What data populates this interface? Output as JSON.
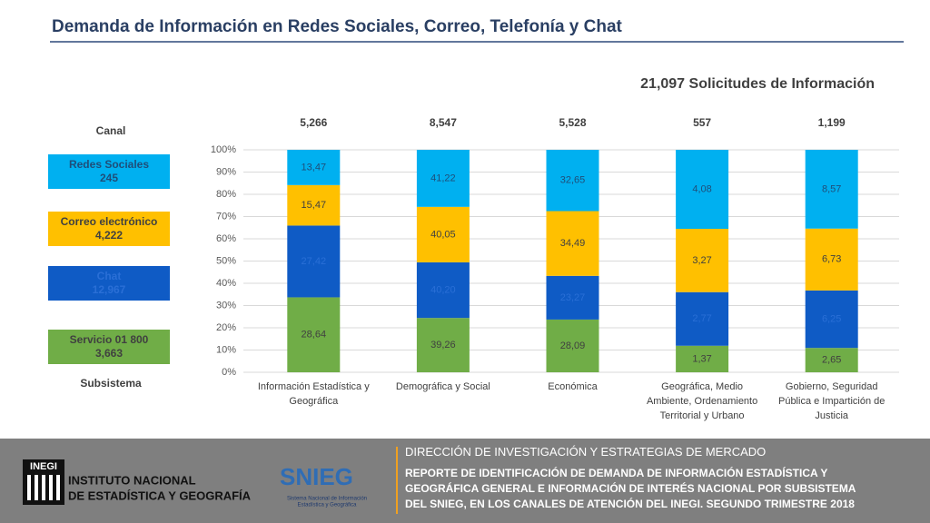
{
  "header": {
    "title": "Demanda de Información en Redes Sociales, Correo, Telefonía y Chat"
  },
  "chart_data": {
    "type": "stacked_bar_100",
    "subtitle": "21,097 Solicitudes de Información",
    "legend_title": "Canal",
    "legend_footer": "Subsistema",
    "categories": [
      "Información Estadística y Geográfica",
      "Demográfica y Social",
      "Económica",
      "Geográfica, Medio Ambiente, Ordenamiento Territorial y Urbano",
      "Gobierno, Seguridad Pública e Impartición de Justicia"
    ],
    "totals": [
      5266,
      8547,
      5528,
      557,
      1199
    ],
    "totals_labels": [
      "5,266",
      "8,547",
      "5,528",
      "557",
      "1,199"
    ],
    "series": [
      {
        "name": "Servicio 01 800",
        "color": "#70ad47",
        "label_color": "#404040",
        "count": 3663,
        "count_label": "3,663",
        "values": [
          28.64,
          39.26,
          28.09,
          1.37,
          2.65
        ],
        "value_labels": [
          "28,64",
          "39,26",
          "28,09",
          "1,37",
          "2,65"
        ]
      },
      {
        "name": "Chat",
        "color": "#0f5bc5",
        "label_color": "#2a6fd6",
        "count": 12967,
        "count_label": "12,967",
        "values": [
          27.42,
          40.2,
          23.27,
          2.77,
          6.25
        ],
        "value_labels": [
          "27,42",
          "40,20",
          "23,27",
          "2,77",
          "6,25"
        ]
      },
      {
        "name": "Correo electrónico",
        "color": "#ffc000",
        "label_color": "#404040",
        "count": 4222,
        "count_label": "4,222",
        "values": [
          15.47,
          40.05,
          34.49,
          3.27,
          6.73
        ],
        "value_labels": [
          "15,47",
          "40,05",
          "34,49",
          "3,27",
          "6,73"
        ]
      },
      {
        "name": "Redes Sociales",
        "color": "#00b0f0",
        "label_color": "#1f4e79",
        "count": 245,
        "values": [
          13.47,
          41.22,
          32.65,
          4.08,
          8.57
        ],
        "value_labels": [
          "13,47",
          "41,22",
          "32,65",
          "4,08",
          "8,57"
        ]
      }
    ],
    "ylim": [
      0,
      100
    ],
    "yticks": [
      {
        "value": 0,
        "label": "0%"
      },
      {
        "value": 10,
        "label": "10%"
      },
      {
        "value": 20,
        "label": "20%"
      },
      {
        "value": 30,
        "label": "30%"
      },
      {
        "value": 40,
        "label": "40%"
      },
      {
        "value": 50,
        "label": "50%"
      },
      {
        "value": 60,
        "label": "60%"
      },
      {
        "value": 70,
        "label": "70%"
      },
      {
        "value": 80,
        "label": "80%"
      },
      {
        "value": 90,
        "label": "90%"
      },
      {
        "value": 100,
        "label": "100%"
      }
    ],
    "grid": true
  },
  "footer": {
    "inegi_mark": "INEGI",
    "institute": [
      "INSTITUTO NACIONAL",
      "DE ESTADÍSTICA Y GEOGRAFÍA"
    ],
    "snieg": "SNIEG",
    "snieg_name": [
      "Sistema Nacional de Información",
      "Estadística y Geográfica"
    ],
    "direction": "DIRECCIÓN DE INVESTIGACIÓN Y ESTRATEGIAS DE MERCADO",
    "report": [
      "REPORTE DE IDENTIFICACIÓN DE DEMANDA DE INFORMACIÓN ESTADÍSTICA  Y",
      "GEOGRÁFICA GENERAL E INFORMACIÓN DE INTERÉS NACIONAL POR SUBSISTEMA",
      "DEL SNIEG, EN LOS CANALES DE ATENCIÓN DEL INEGI. SEGUNDO TRIMESTRE 2018"
    ]
  }
}
